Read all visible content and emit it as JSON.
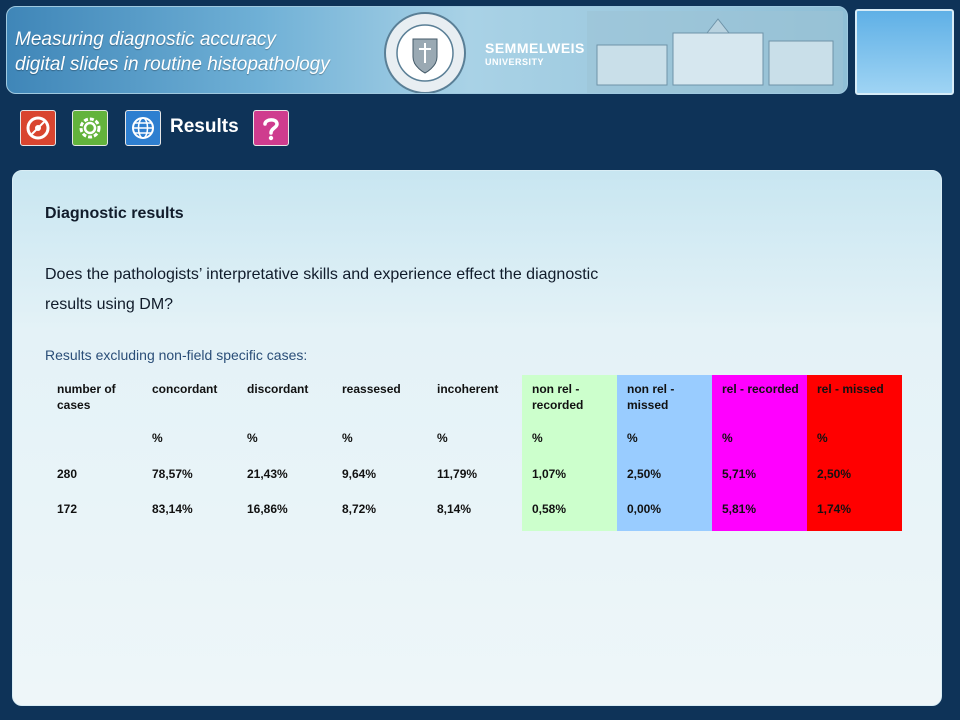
{
  "header": {
    "title_line1": "Measuring diagnostic accuracy",
    "title_line2": "digital slides in routine histopathology",
    "university": "SEMMELWEIS",
    "university_sub": "UNIVERSITY"
  },
  "toolbar": {
    "icons": [
      "disc-icon",
      "gear-icon",
      "globe-icon",
      "help-icon"
    ],
    "section_label": "Results"
  },
  "content": {
    "heading": "Diagnostic results",
    "question_line1": "Does the pathologists’ interpretative skills and experience effect the diagnostic",
    "question_line2": "results using DM?",
    "subnote": "Results excluding non-field specific cases:"
  },
  "table": {
    "headers": [
      "number of cases",
      "concordant",
      "discordant",
      "reassesed",
      "incoherent",
      "non rel - recorded",
      "non rel - missed",
      "rel - recorded",
      "rel - missed"
    ],
    "units": [
      "",
      "%",
      "%",
      "%",
      "%",
      "%",
      "%",
      "%",
      "%"
    ],
    "rows": [
      [
        "280",
        "78,57%",
        "21,43%",
        "9,64%",
        "11,79%",
        "1,07%",
        "2,50%",
        "5,71%",
        "2,50%"
      ],
      [
        "172",
        "83,14%",
        "16,86%",
        "8,72%",
        "8,14%",
        "0,58%",
        "0,00%",
        "5,81%",
        "1,74%"
      ]
    ],
    "column_colors": {
      "non_rel_recorded": "#ccffcc",
      "non_rel_missed": "#99ccff",
      "rel_recorded": "#ff00ff",
      "rel_missed": "#ff0000"
    }
  }
}
